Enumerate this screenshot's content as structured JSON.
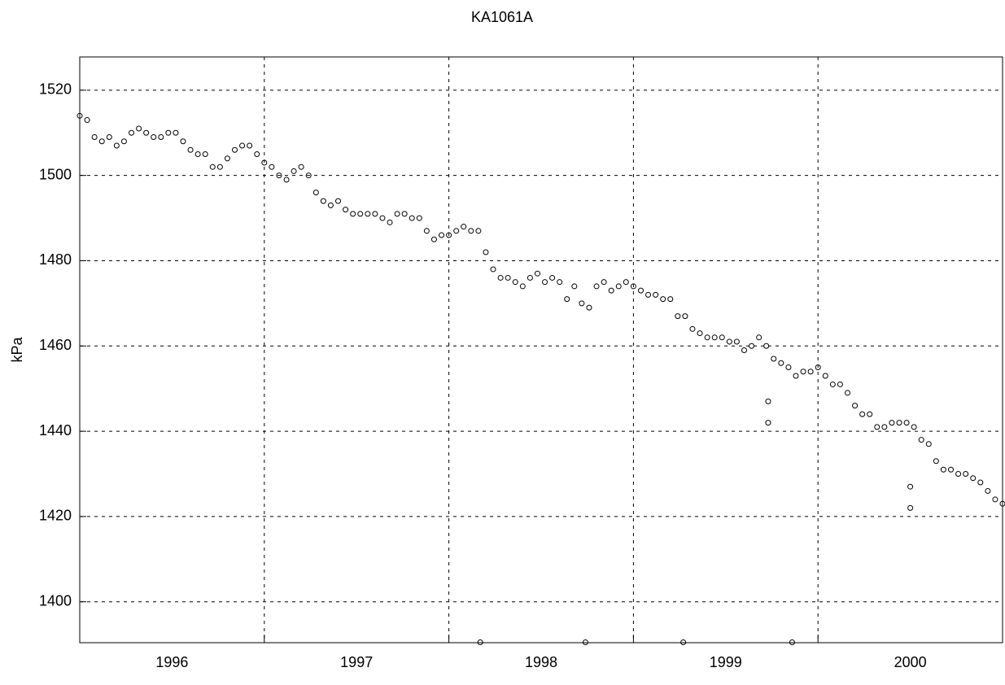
{
  "chart_data": {
    "type": "scatter",
    "title": "KA1061A",
    "ylabel": "kPa",
    "x": [
      1996.0,
      1996.04,
      1996.08,
      1996.12,
      1996.16,
      1996.2,
      1996.24,
      1996.28,
      1996.32,
      1996.36,
      1996.4,
      1996.44,
      1996.48,
      1996.52,
      1996.56,
      1996.6,
      1996.64,
      1996.68,
      1996.72,
      1996.76,
      1996.8,
      1996.84,
      1996.88,
      1996.92,
      1996.96,
      1997.0,
      1997.04,
      1997.08,
      1997.12,
      1997.16,
      1997.2,
      1997.24,
      1997.28,
      1997.32,
      1997.36,
      1997.4,
      1997.44,
      1997.48,
      1997.52,
      1997.56,
      1997.6,
      1997.64,
      1997.68,
      1997.72,
      1997.76,
      1997.8,
      1997.84,
      1997.88,
      1997.92,
      1997.96,
      1998.0,
      1998.04,
      1998.08,
      1998.12,
      1998.16,
      1998.2,
      1998.24,
      1998.28,
      1998.32,
      1998.36,
      1998.4,
      1998.44,
      1998.48,
      1998.52,
      1998.56,
      1998.6,
      1998.64,
      1998.68,
      1998.72,
      1998.76,
      1998.8,
      1998.84,
      1998.88,
      1998.92,
      1998.96,
      1999.0,
      1999.04,
      1999.08,
      1999.12,
      1999.16,
      1999.2,
      1999.24,
      1999.28,
      1999.32,
      1999.36,
      1999.4,
      1999.44,
      1999.48,
      1999.52,
      1999.56,
      1999.6,
      1999.64,
      1999.68,
      1999.72,
      1999.76,
      1999.8,
      1999.84,
      1999.88,
      1999.92,
      1999.96,
      2000.0,
      2000.04,
      2000.08,
      2000.12,
      2000.16,
      2000.2,
      2000.24,
      2000.28,
      2000.32,
      2000.36,
      2000.4,
      2000.44,
      2000.48,
      2000.52,
      2000.56,
      2000.6,
      2000.64,
      2000.68,
      2000.72,
      2000.76,
      2000.8,
      2000.84,
      2000.88,
      2000.92,
      2000.96,
      2001.0,
      1998.17,
      1998.74,
      1999.27,
      1999.86,
      1999.73,
      1999.73,
      2000.5,
      2000.5
    ],
    "series": [
      {
        "name": "KA1061A",
        "color": "#000000",
        "values": [
          1514,
          1513,
          1509,
          1508,
          1509,
          1507,
          1508,
          1510,
          1511,
          1510,
          1509,
          1509,
          1510,
          1510,
          1508,
          1506,
          1505,
          1505,
          1502,
          1502,
          1504,
          1506,
          1507,
          1507,
          1505,
          1503,
          1502,
          1500,
          1499,
          1501,
          1502,
          1500,
          1496,
          1494,
          1493,
          1494,
          1492,
          1491,
          1491,
          1491,
          1491,
          1490,
          1489,
          1491,
          1491,
          1490,
          1490,
          1487,
          1485,
          1486,
          1486,
          1487,
          1488,
          1487,
          1487,
          1482,
          1478,
          1476,
          1476,
          1475,
          1474,
          1476,
          1477,
          1475,
          1476,
          1475,
          1471,
          1474,
          1470,
          1469,
          1474,
          1475,
          1473,
          1474,
          1475,
          1474,
          1473,
          1472,
          1472,
          1471,
          1471,
          1467,
          1467,
          1464,
          1463,
          1462,
          1462,
          1462,
          1461,
          1461,
          1459,
          1460,
          1462,
          1460,
          1457,
          1456,
          1455,
          1453,
          1454,
          1454,
          1455,
          1453,
          1451,
          1451,
          1449,
          1446,
          1444,
          1444,
          1441,
          1441,
          1442,
          1442,
          1442,
          1441,
          1438,
          1437,
          1433,
          1431,
          1431,
          1430,
          1430,
          1429,
          1428,
          1426,
          1424,
          1423,
          1390.5,
          1390.5,
          1390.5,
          1390.5,
          1447,
          1442,
          1427,
          1422
        ]
      }
    ],
    "xlim": [
      1996,
      2001
    ],
    "xticks": [
      {
        "value": 1996.5,
        "label": "1996"
      },
      {
        "value": 1997.5,
        "label": "1997"
      },
      {
        "value": 1998.5,
        "label": "1998"
      },
      {
        "value": 1999.5,
        "label": "1999"
      },
      {
        "value": 2000.5,
        "label": "2000"
      }
    ],
    "xgrid": [
      1997,
      1998,
      1999,
      2000
    ],
    "ylim": [
      1390.4,
      1527.8
    ],
    "yticks": [
      1400,
      1420,
      1440,
      1460,
      1480,
      1500,
      1520
    ],
    "grid": true
  }
}
